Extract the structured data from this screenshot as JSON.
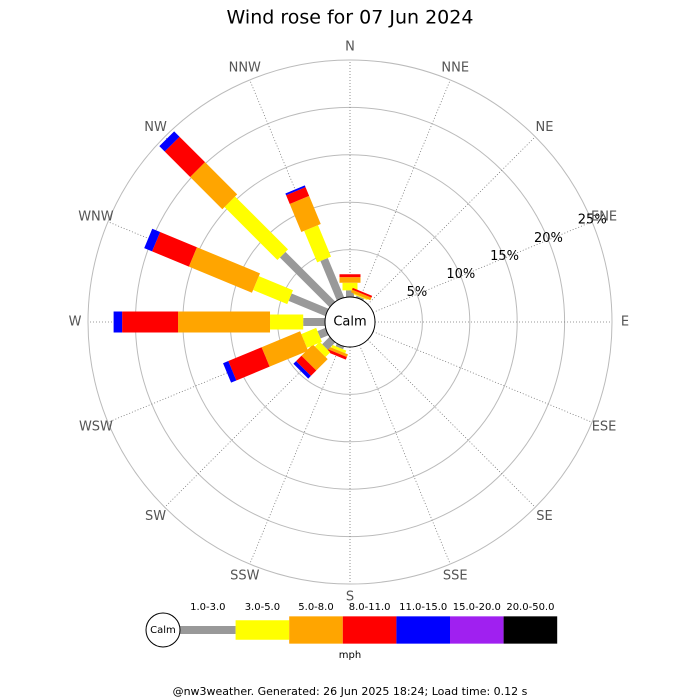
{
  "chart_data": {
    "type": "windrose",
    "title": "Wind rose for 07 Jun 2024",
    "categories": [
      "N",
      "NNE",
      "NE",
      "ENE",
      "E",
      "ESE",
      "SE",
      "SSE",
      "S",
      "SSW",
      "SW",
      "WSW",
      "W",
      "WNW",
      "NW",
      "NNW"
    ],
    "series": [
      {
        "name": "1.0-3.0",
        "color": "#999999",
        "values": [
          0.7,
          0.2,
          0,
          0,
          0,
          0,
          0,
          0,
          0,
          0.3,
          1.1,
          0.9,
          2.3,
          4.2,
          7.4,
          4.5
        ]
      },
      {
        "name": "3.0-5.0",
        "color": "#ffff00",
        "values": [
          0.8,
          0.1,
          0,
          0,
          0,
          0,
          0,
          0,
          0,
          0.3,
          0.7,
          1.7,
          3.5,
          3.9,
          7.9,
          3.6
        ]
      },
      {
        "name": "5.0-8.0",
        "color": "#ffa500",
        "values": [
          0.6,
          0.3,
          0,
          0,
          0,
          0,
          0,
          0,
          0,
          0.3,
          1.7,
          4.4,
          9.7,
          7.2,
          4.8,
          3.2
        ]
      },
      {
        "name": "8.0-11.0",
        "color": "#ff0000",
        "values": [
          0.3,
          0.2,
          0,
          0,
          0,
          0,
          0,
          0,
          0,
          0.3,
          0.8,
          3.8,
          5.9,
          4.2,
          3.8,
          1.0
        ]
      },
      {
        "name": "11.0-15.0",
        "color": "#0000ff",
        "values": [
          0,
          0,
          0,
          0,
          0,
          0,
          0,
          0,
          0,
          0,
          0.4,
          0.6,
          0.9,
          0.9,
          0.8,
          0.2
        ]
      },
      {
        "name": "15.0-20.0",
        "color": "#a020f0",
        "values": [
          0,
          0,
          0,
          0,
          0,
          0,
          0,
          0,
          0,
          0,
          0,
          0,
          0,
          0,
          0,
          0
        ]
      },
      {
        "name": "20.0-50.0",
        "color": "#000000",
        "values": [
          0,
          0,
          0,
          0,
          0,
          0,
          0,
          0,
          0,
          0,
          0,
          0,
          0,
          0,
          0,
          0
        ]
      }
    ],
    "ylim": [
      0,
      25
    ],
    "yticks": [
      {
        "value": 5,
        "label": "5%"
      },
      {
        "value": 10,
        "label": "10%"
      },
      {
        "value": 15,
        "label": "15%"
      },
      {
        "value": 20,
        "label": "20%"
      },
      {
        "value": 25,
        "label": "25%"
      }
    ],
    "calm_label": "Calm",
    "unit": "mph",
    "footer": "@nw3weather. Generated: 26 Jun 2025 18:24; Load time: 0.12 s"
  }
}
